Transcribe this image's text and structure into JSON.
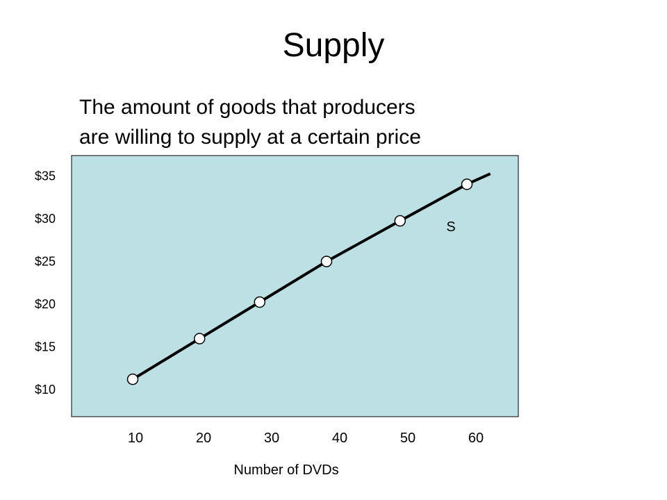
{
  "slide": {
    "title": "Supply",
    "subtitle_lines": [
      "The amount of goods that producers",
      "are willing to supply at a certain price"
    ]
  },
  "colors": {
    "plot_background": "#bce0e4",
    "line": "#000000",
    "point_fill": "#ffffff"
  },
  "chart_data": {
    "type": "line",
    "title": "",
    "xlabel": "Number of DVDs",
    "ylabel": "",
    "x_ticks": [
      10,
      20,
      30,
      40,
      50,
      60
    ],
    "x_tick_labels": [
      "10",
      "20",
      "30",
      "40",
      "50",
      "60"
    ],
    "y_ticks": [
      10,
      15,
      20,
      25,
      30,
      35
    ],
    "y_tick_labels": [
      "$10",
      "$15",
      "$20",
      "$25",
      "$30",
      "$35"
    ],
    "xlim": [
      10,
      60
    ],
    "ylim": [
      10,
      35
    ],
    "grid": false,
    "series": [
      {
        "name": "S",
        "x": [
          10,
          20,
          29,
          39,
          50,
          60
        ],
        "y": [
          10.5,
          15.5,
          20,
          25,
          30,
          34.5
        ]
      }
    ],
    "line_extends_to": {
      "x": 63.5,
      "y": 35.8
    }
  }
}
